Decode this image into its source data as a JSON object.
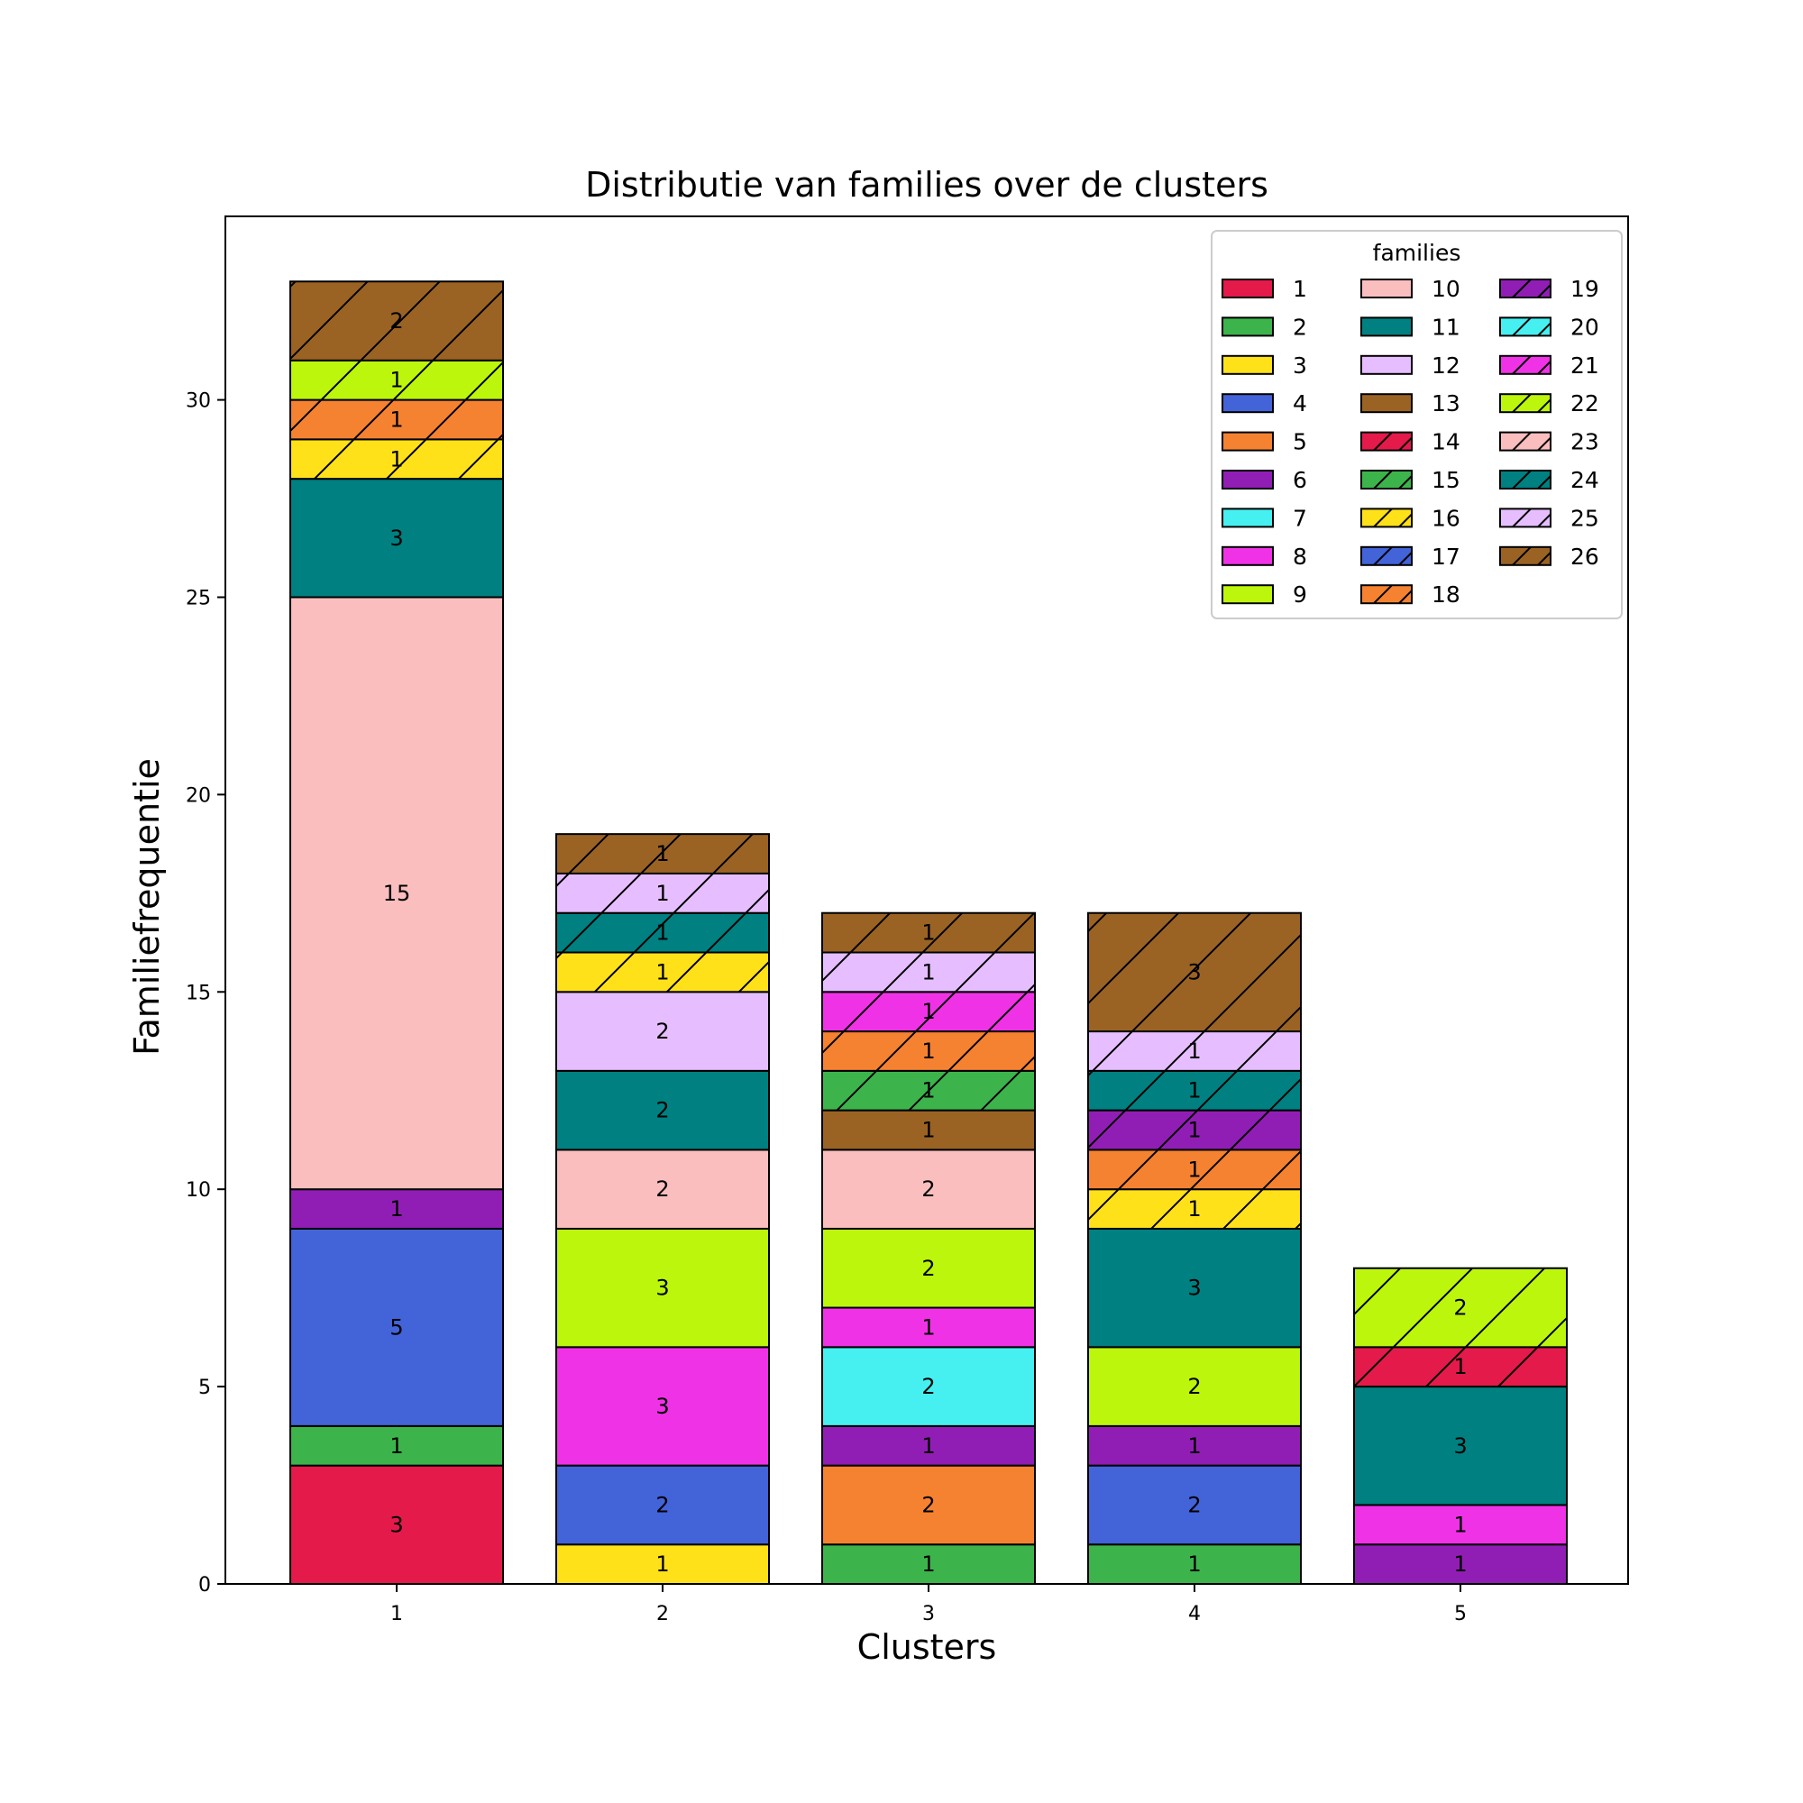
{
  "chart_data": {
    "type": "bar",
    "stacked": true,
    "title": "Distributie van families over de clusters",
    "xlabel": "Clusters",
    "ylabel": "Familiefrequentie",
    "ylim": [
      0,
      34.65
    ],
    "yticks": [
      0,
      5,
      10,
      15,
      20,
      25,
      30
    ],
    "categories": [
      "1",
      "2",
      "3",
      "4",
      "5"
    ],
    "legend": {
      "title": "families",
      "position": "upper right",
      "columns": 3
    },
    "series": [
      {
        "name": "1",
        "color": "#e31a4a",
        "hatch": false,
        "values": [
          3,
          0,
          0,
          0,
          0
        ]
      },
      {
        "name": "2",
        "color": "#3cb44b",
        "hatch": false,
        "values": [
          1,
          0,
          1,
          1,
          0
        ]
      },
      {
        "name": "3",
        "color": "#ffe119",
        "hatch": false,
        "values": [
          0,
          1,
          0,
          0,
          0
        ]
      },
      {
        "name": "4",
        "color": "#4363d8",
        "hatch": false,
        "values": [
          5,
          2,
          0,
          2,
          0
        ]
      },
      {
        "name": "5",
        "color": "#f58231",
        "hatch": false,
        "values": [
          0,
          0,
          2,
          0,
          0
        ]
      },
      {
        "name": "6",
        "color": "#911eb4",
        "hatch": false,
        "values": [
          1,
          0,
          1,
          1,
          1
        ]
      },
      {
        "name": "7",
        "color": "#46f0f0",
        "hatch": false,
        "values": [
          0,
          0,
          2,
          0,
          0
        ]
      },
      {
        "name": "8",
        "color": "#f032e6",
        "hatch": false,
        "values": [
          0,
          3,
          1,
          0,
          1
        ]
      },
      {
        "name": "9",
        "color": "#bcf60c",
        "hatch": false,
        "values": [
          0,
          3,
          2,
          2,
          0
        ]
      },
      {
        "name": "10",
        "color": "#fabebe",
        "hatch": false,
        "values": [
          15,
          2,
          2,
          0,
          0
        ]
      },
      {
        "name": "11",
        "color": "#008080",
        "hatch": false,
        "values": [
          3,
          2,
          0,
          3,
          3
        ]
      },
      {
        "name": "12",
        "color": "#e6beff",
        "hatch": false,
        "values": [
          0,
          2,
          0,
          0,
          0
        ]
      },
      {
        "name": "13",
        "color": "#9a6324",
        "hatch": false,
        "values": [
          0,
          0,
          1,
          0,
          0
        ]
      },
      {
        "name": "14",
        "color": "#e31a4a",
        "hatch": true,
        "values": [
          0,
          0,
          0,
          0,
          1
        ]
      },
      {
        "name": "15",
        "color": "#3cb44b",
        "hatch": true,
        "values": [
          0,
          0,
          1,
          0,
          0
        ]
      },
      {
        "name": "16",
        "color": "#ffe119",
        "hatch": true,
        "values": [
          1,
          1,
          0,
          1,
          0
        ]
      },
      {
        "name": "17",
        "color": "#4363d8",
        "hatch": true,
        "values": [
          0,
          0,
          0,
          0,
          0
        ]
      },
      {
        "name": "18",
        "color": "#f58231",
        "hatch": true,
        "values": [
          1,
          0,
          1,
          1,
          0
        ]
      },
      {
        "name": "19",
        "color": "#911eb4",
        "hatch": true,
        "values": [
          0,
          0,
          0,
          1,
          0
        ]
      },
      {
        "name": "20",
        "color": "#46f0f0",
        "hatch": true,
        "values": [
          0,
          0,
          0,
          0,
          0
        ]
      },
      {
        "name": "21",
        "color": "#f032e6",
        "hatch": true,
        "values": [
          0,
          0,
          1,
          0,
          0
        ]
      },
      {
        "name": "22",
        "color": "#bcf60c",
        "hatch": true,
        "values": [
          1,
          0,
          0,
          0,
          2
        ]
      },
      {
        "name": "23",
        "color": "#fabebe",
        "hatch": true,
        "values": [
          0,
          0,
          0,
          0,
          0
        ]
      },
      {
        "name": "24",
        "color": "#008080",
        "hatch": true,
        "values": [
          0,
          1,
          0,
          1,
          0
        ]
      },
      {
        "name": "25",
        "color": "#e6beff",
        "hatch": true,
        "values": [
          0,
          1,
          1,
          1,
          0
        ]
      },
      {
        "name": "26",
        "color": "#9a6324",
        "hatch": true,
        "values": [
          2,
          1,
          1,
          3,
          0
        ]
      }
    ]
  }
}
